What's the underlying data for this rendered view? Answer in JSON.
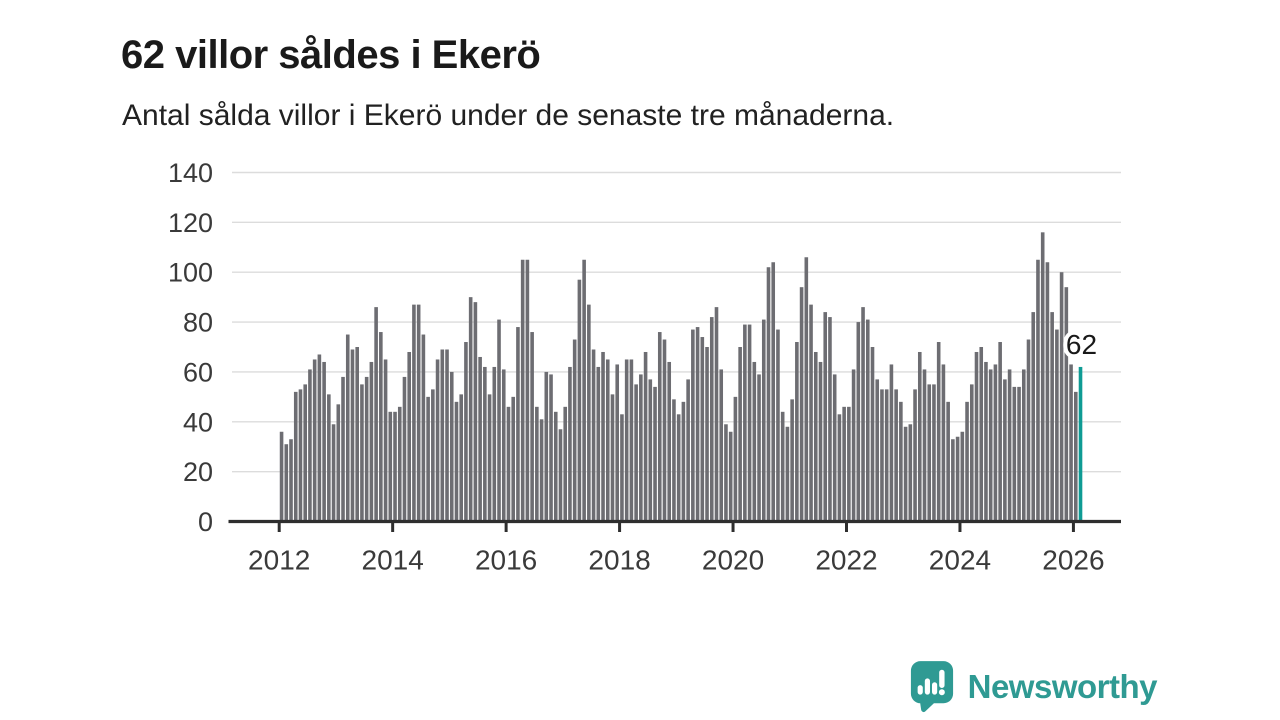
{
  "header": {
    "title": "62 villor såldes i Ekerö",
    "subtitle": "Antal sålda villor i Ekerö under de senaste tre månaderna."
  },
  "chart_data": {
    "type": "bar",
    "title": "62 villor såldes i Ekerö",
    "subtitle": "Antal sålda villor i Ekerö under de senaste tre månaderna.",
    "x_start": {
      "year": 2012,
      "month": 1
    },
    "x_end": {
      "year": 2026,
      "month": 2
    },
    "frequency": "monthly",
    "values": [
      36,
      31,
      33,
      52,
      53,
      55,
      61,
      65,
      67,
      64,
      51,
      39,
      47,
      58,
      75,
      69,
      70,
      55,
      58,
      64,
      86,
      76,
      65,
      44,
      44,
      46,
      58,
      68,
      87,
      87,
      75,
      50,
      53,
      65,
      69,
      69,
      60,
      48,
      51,
      72,
      90,
      88,
      66,
      62,
      51,
      62,
      81,
      61,
      46,
      50,
      78,
      105,
      105,
      76,
      46,
      41,
      60,
      59,
      44,
      37,
      46,
      62,
      73,
      97,
      105,
      87,
      69,
      62,
      68,
      65,
      51,
      63,
      43,
      65,
      65,
      55,
      59,
      68,
      57,
      54,
      76,
      73,
      64,
      49,
      43,
      48,
      57,
      77,
      78,
      74,
      70,
      82,
      86,
      61,
      39,
      36,
      50,
      70,
      79,
      79,
      64,
      59,
      81,
      102,
      104,
      77,
      44,
      38,
      49,
      72,
      94,
      106,
      87,
      68,
      64,
      84,
      82,
      59,
      43,
      46,
      46,
      61,
      80,
      86,
      81,
      70,
      57,
      53,
      53,
      63,
      53,
      48,
      38,
      39,
      53,
      68,
      61,
      55,
      55,
      72,
      63,
      48,
      33,
      34,
      36,
      48,
      55,
      68,
      70,
      64,
      61,
      63,
      72,
      57,
      61,
      54,
      54,
      61,
      73,
      84,
      105,
      116,
      104,
      84,
      77,
      100,
      94,
      63,
      52,
      62
    ],
    "highlight_last": true,
    "last_value_label": "62",
    "ylim": [
      0,
      140
    ],
    "yticks": [
      0,
      20,
      40,
      60,
      80,
      100,
      120,
      140
    ],
    "xticks": [
      2012,
      2014,
      2016,
      2018,
      2020,
      2022,
      2024,
      2026
    ],
    "grid": true,
    "legend": "none",
    "bar_color": "#6d6d72",
    "highlight_color": "#0f9b94",
    "axis_color": "#2e2e2e",
    "grid_color": "#dcdcdc",
    "tick_label_color": "#3a3a3a"
  },
  "branding": {
    "logo_text": "Newsworthy",
    "logo_icon": "speech-bubble-bar-chart-icon",
    "logo_color": "#2f9a93"
  },
  "theme": {
    "accent_teal": "#2f9a93",
    "bar_gray": "#6d6d72",
    "text_dark": "#1a1a1a"
  }
}
